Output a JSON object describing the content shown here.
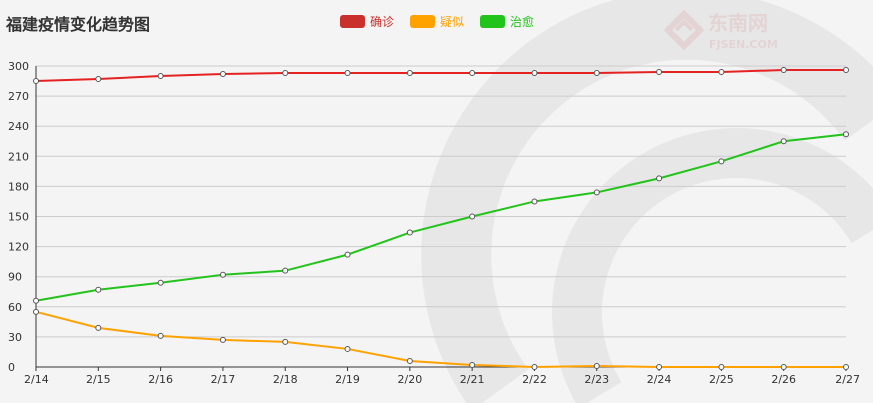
{
  "title": "福建疫情变化趋势图",
  "logo": {
    "brand": "东南网",
    "domain": "FJSEN.COM"
  },
  "colors": {
    "confirmed": "#e52222",
    "suspected": "#ffa200",
    "cured": "#22c31a"
  },
  "chart_data": {
    "type": "line",
    "title": "福建疫情变化趋势图",
    "categories": [
      "2/14",
      "2/15",
      "2/16",
      "2/17",
      "2/18",
      "2/19",
      "2/20",
      "2/21",
      "2/22",
      "2/23",
      "2/24",
      "2/25",
      "2/26",
      "2/27"
    ],
    "ylim": [
      0,
      300
    ],
    "yticks": [
      0,
      30,
      60,
      90,
      120,
      150,
      180,
      210,
      240,
      270,
      300
    ],
    "grid": true,
    "legend_position": "top-center",
    "series": [
      {
        "name": "确诊",
        "color": "#e52222",
        "values": [
          285,
          287,
          290,
          292,
          293,
          293,
          293,
          293,
          293,
          293,
          294,
          294,
          296,
          296
        ]
      },
      {
        "name": "疑似",
        "color": "#ffa200",
        "values": [
          55,
          39,
          31,
          27,
          25,
          18,
          6,
          2,
          0,
          1,
          0,
          0,
          0,
          0
        ]
      },
      {
        "name": "治愈",
        "color": "#22c31a",
        "values": [
          66,
          77,
          84,
          92,
          96,
          112,
          134,
          150,
          165,
          174,
          188,
          205,
          225,
          232
        ]
      }
    ]
  }
}
